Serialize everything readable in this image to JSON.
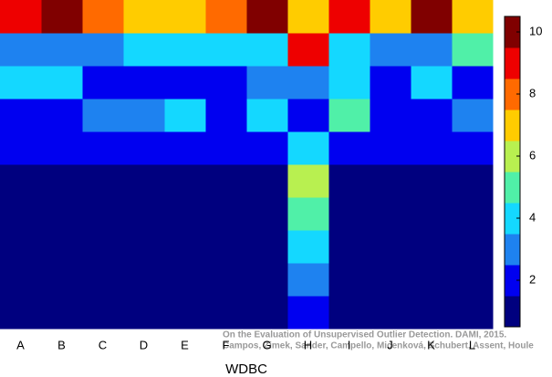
{
  "chart_data": {
    "type": "heatmap",
    "x_label": "WDBC",
    "categories": [
      "A",
      "B",
      "C",
      "D",
      "E",
      "F",
      "G",
      "H",
      "I",
      "J",
      "K",
      "L"
    ],
    "z": [
      [
        9,
        10,
        8,
        7,
        7,
        8,
        10,
        7,
        9,
        7,
        10,
        7
      ],
      [
        3,
        3,
        3,
        4,
        4,
        4,
        4,
        9,
        4,
        3,
        3,
        5
      ],
      [
        4,
        4,
        2,
        2,
        2,
        2,
        3,
        3,
        4,
        2,
        4,
        2
      ],
      [
        2,
        2,
        3,
        3,
        4,
        2,
        4,
        2,
        5,
        2,
        2,
        3
      ],
      [
        2,
        2,
        2,
        2,
        2,
        2,
        2,
        4,
        2,
        2,
        2,
        2
      ],
      [
        1,
        1,
        1,
        1,
        1,
        1,
        1,
        6,
        1,
        1,
        1,
        1
      ],
      [
        1,
        1,
        1,
        1,
        1,
        1,
        1,
        5,
        1,
        1,
        1,
        1
      ],
      [
        1,
        1,
        1,
        1,
        1,
        1,
        1,
        4,
        1,
        1,
        1,
        1
      ],
      [
        1,
        1,
        1,
        1,
        1,
        1,
        1,
        3,
        1,
        1,
        1,
        1
      ],
      [
        1,
        1,
        1,
        1,
        1,
        1,
        1,
        2,
        1,
        1,
        1,
        1
      ]
    ],
    "colors": [
      "#00007f",
      "#0000f0",
      "#1e82f0",
      "#14d8ff",
      "#50f0a8",
      "#b8f050",
      "#ffcc00",
      "#ff6a00",
      "#ee0000",
      "#800000"
    ],
    "clim": [
      0.5,
      10.5
    ],
    "cticks": [
      2,
      4,
      6,
      8,
      10
    ],
    "annotations": [
      "On the Evaluation of Unsupervised Outlier Detection. DAMI, 2015.",
      "Campos, Zimek, Sander, Campello, Micenková, Schubert, Assent, Houle"
    ]
  }
}
